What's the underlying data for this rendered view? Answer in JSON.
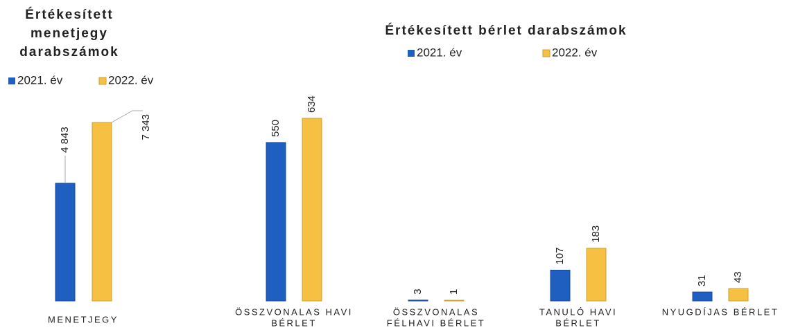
{
  "chart_data": [
    {
      "type": "bar",
      "title": [
        "Értékesített",
        "menetjegy",
        "darabszámok"
      ],
      "categories": [
        [
          "MENETJEGY"
        ]
      ],
      "series": [
        {
          "name": "2021. év",
          "color": "#1f5fbf",
          "values": [
            4843
          ],
          "value_labels": [
            "4 843"
          ]
        },
        {
          "name": "2022. év",
          "color": "#f6c142",
          "values": [
            7343
          ],
          "value_labels": [
            "7 343"
          ]
        }
      ]
    },
    {
      "type": "bar",
      "title": [
        "Értékesített bérlet darabszámok"
      ],
      "categories": [
        [
          "ÖSSZVONALAS HAVI",
          "BÉRLET"
        ],
        [
          "ÖSSZVONALAS",
          "FÉLHAVI BÉRLET"
        ],
        [
          "TANULÓ HAVI",
          "BÉRLET"
        ],
        [
          "NYUGDÍJAS BÉRLET"
        ]
      ],
      "series": [
        {
          "name": "2021. év",
          "color": "#1f5fbf",
          "values": [
            550,
            3,
            107,
            31
          ]
        },
        {
          "name": "2022. év",
          "color": "#f6c142",
          "values": [
            634,
            1,
            183,
            43
          ]
        }
      ]
    }
  ]
}
